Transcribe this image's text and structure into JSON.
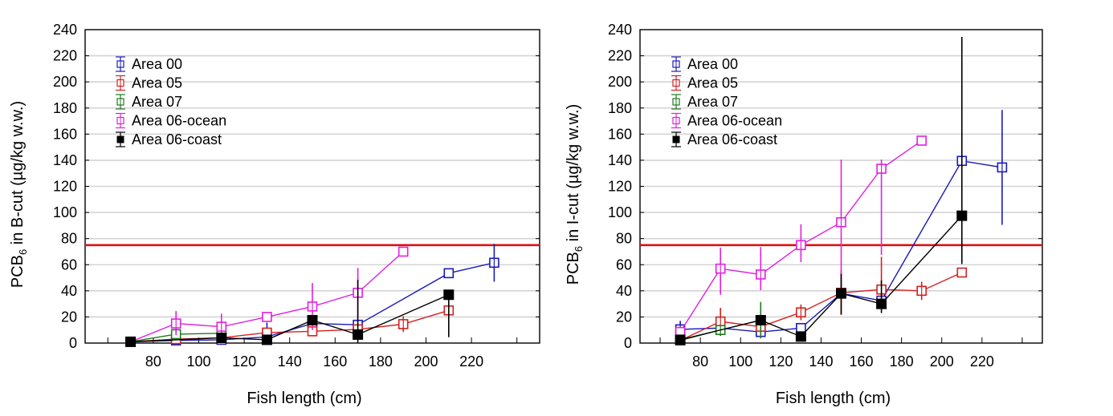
{
  "chart_data": [
    {
      "type": "line",
      "title": "",
      "xlabel": "Fish length (cm)",
      "ylabel_main": "PCB",
      "ylabel_sub": "6",
      "ylabel_rest": " in B-cut (µg/kg w.w.)",
      "xlim": [
        50,
        250
      ],
      "ylim": [
        0,
        240
      ],
      "xticks": [
        80,
        100,
        120,
        140,
        160,
        180,
        200,
        220
      ],
      "yticks": [
        0,
        20,
        40,
        60,
        80,
        100,
        120,
        140,
        160,
        180,
        200,
        220,
        240
      ],
      "grid": true,
      "legend_position": "top-left",
      "reference_line": {
        "y": 75,
        "color": "#dd1111"
      },
      "series": [
        {
          "name": "Area 00",
          "color": "#1a1ab8",
          "marker": "open-square",
          "x": [
            70,
            90,
            110,
            130,
            150,
            170,
            210,
            230
          ],
          "y": [
            1,
            2,
            2.5,
            4.7,
            15,
            14,
            53.5,
            61.5
          ],
          "err_low": [
            0,
            0,
            0,
            0,
            0,
            0,
            0,
            14.5
          ],
          "err_high": [
            0,
            0,
            0,
            11,
            0,
            0,
            0,
            14.5
          ]
        },
        {
          "name": "Area 05",
          "color": "#d42020",
          "marker": "open-square",
          "x": [
            70,
            90,
            110,
            130,
            150,
            170,
            190,
            210
          ],
          "y": [
            1,
            3,
            4,
            8,
            9,
            10.5,
            14.5,
            25
          ],
          "err_low": [
            0,
            0,
            0,
            0,
            0,
            0,
            6,
            0
          ],
          "err_high": [
            0,
            0,
            0,
            0,
            0,
            0,
            6,
            0
          ]
        },
        {
          "name": "Area 07",
          "color": "#1f7a1f",
          "marker": "open-square",
          "x": [
            70,
            90,
            110
          ],
          "y": [
            1,
            6.8,
            7.5
          ],
          "err_low": [
            0,
            0,
            0
          ],
          "err_high": [
            0,
            0,
            0
          ]
        },
        {
          "name": "Area 06-ocean",
          "color": "#e020e0",
          "marker": "open-square",
          "x": [
            70,
            90,
            110,
            130,
            150,
            170,
            190
          ],
          "y": [
            1,
            15,
            12.5,
            20,
            28,
            38.5,
            70
          ],
          "err_low": [
            0,
            9,
            10,
            0,
            18,
            19,
            0
          ],
          "err_high": [
            0,
            9.5,
            10,
            0,
            18,
            19,
            0
          ]
        },
        {
          "name": "Area 06-coast",
          "color": "#000000",
          "marker": "filled-square",
          "x": [
            70,
            110,
            130,
            150,
            170,
            210
          ],
          "y": [
            1,
            4,
            2.5,
            17.5,
            6.5,
            37
          ],
          "err_low": [
            0,
            0,
            0,
            0,
            6.5,
            32.5
          ],
          "err_high": [
            0,
            0,
            0,
            0,
            42,
            0
          ]
        }
      ]
    },
    {
      "type": "line",
      "title": "",
      "xlabel": "Fish length (cm)",
      "ylabel_main": "PCB",
      "ylabel_sub": "6",
      "ylabel_rest": " in I-cut (µg/kg w.w.)",
      "xlim": [
        50,
        250
      ],
      "ylim": [
        0,
        240
      ],
      "xticks": [
        80,
        100,
        120,
        140,
        160,
        180,
        200,
        220
      ],
      "yticks": [
        0,
        20,
        40,
        60,
        80,
        100,
        120,
        140,
        160,
        180,
        200,
        220,
        240
      ],
      "grid": true,
      "legend_position": "top-left",
      "reference_line": {
        "y": 75,
        "color": "#dd1111"
      },
      "series": [
        {
          "name": "Area 00",
          "color": "#1a1ab8",
          "marker": "open-square",
          "x": [
            70,
            90,
            110,
            130,
            150,
            170,
            210,
            230
          ],
          "y": [
            10.5,
            11.5,
            8.5,
            11.5,
            38,
            32.5,
            139.5,
            134.5
          ],
          "err_low": [
            6,
            6,
            0,
            0,
            0,
            0,
            0,
            44
          ],
          "err_high": [
            6.5,
            6,
            0,
            0,
            0,
            0,
            0,
            44
          ]
        },
        {
          "name": "Area 05",
          "color": "#d42020",
          "marker": "open-square",
          "x": [
            70,
            90,
            110,
            130,
            150,
            170,
            190,
            210
          ],
          "y": [
            2,
            16.5,
            12.5,
            23.5,
            38.5,
            41,
            40,
            54
          ],
          "err_low": [
            0,
            10,
            0,
            6,
            17,
            11,
            7,
            0
          ],
          "err_high": [
            0,
            10.5,
            0,
            6,
            17,
            25,
            7,
            0
          ]
        },
        {
          "name": "Area 07",
          "color": "#1f7a1f",
          "marker": "open-square",
          "x": [
            70,
            90,
            110
          ],
          "y": [
            2,
            10,
            17.5
          ],
          "err_low": [
            0,
            4,
            14
          ],
          "err_high": [
            0,
            4,
            14
          ]
        },
        {
          "name": "Area 06-ocean",
          "color": "#e020e0",
          "marker": "open-square",
          "x": [
            70,
            90,
            110,
            130,
            150,
            170,
            190
          ],
          "y": [
            8.5,
            57,
            52.5,
            75,
            92.5,
            133.5,
            155
          ],
          "err_low": [
            0,
            20,
            12,
            13,
            55,
            66,
            0
          ],
          "err_high": [
            0,
            16,
            21,
            16,
            48,
            7,
            0
          ]
        },
        {
          "name": "Area 06-coast",
          "color": "#000000",
          "marker": "filled-square",
          "x": [
            70,
            110,
            130,
            150,
            170,
            210
          ],
          "y": [
            2.5,
            17.5,
            5,
            38,
            30,
            97.5
          ],
          "err_low": [
            0,
            0,
            0,
            16,
            7,
            37
          ],
          "err_high": [
            0,
            0,
            0,
            15,
            18,
            137
          ]
        }
      ]
    }
  ]
}
